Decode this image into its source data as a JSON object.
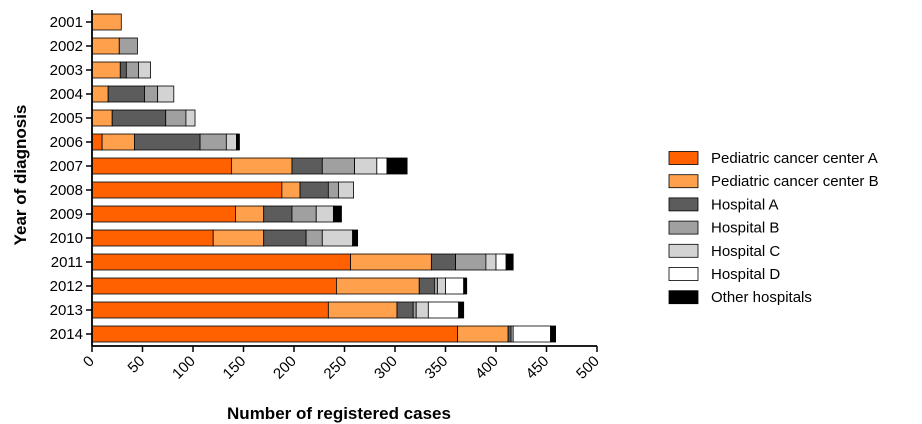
{
  "chart_data": {
    "type": "bar",
    "orientation": "horizontal",
    "stacked": true,
    "xlabel": "Number of registered cases",
    "ylabel": "Year of diagnosis",
    "xlim": [
      0,
      500
    ],
    "xticks": [
      "0",
      "50",
      "100",
      "150",
      "200",
      "250",
      "300",
      "350",
      "400",
      "450",
      "500"
    ],
    "grid": false,
    "legend_position": "right",
    "categories": [
      "2001",
      "2002",
      "2003",
      "2004",
      "2005",
      "2006",
      "2007",
      "2008",
      "2009",
      "2010",
      "2011",
      "2012",
      "2013",
      "2014"
    ],
    "series": [
      {
        "name": "Pediatric cancer center A",
        "color": "#FF6100",
        "values": [
          0,
          0,
          0,
          0,
          0,
          10,
          138,
          188,
          142,
          120,
          256,
          242,
          234,
          362
        ]
      },
      {
        "name": "Pediatric cancer center B",
        "color": "#FFA04D",
        "values": [
          29,
          27,
          28,
          16,
          20,
          32,
          60,
          18,
          28,
          50,
          80,
          82,
          68,
          50
        ]
      },
      {
        "name": "Hospital A",
        "color": "#5C5C5C",
        "values": [
          0,
          0,
          6,
          36,
          53,
          65,
          30,
          28,
          28,
          42,
          24,
          15,
          16,
          3
        ]
      },
      {
        "name": "Hospital B",
        "color": "#A0A0A0",
        "values": [
          0,
          18,
          12,
          13,
          20,
          26,
          32,
          10,
          24,
          16,
          30,
          3,
          3,
          0
        ]
      },
      {
        "name": "Hospital C",
        "color": "#D3D3D3",
        "values": [
          0,
          0,
          12,
          16,
          9,
          10,
          22,
          15,
          17,
          30,
          10,
          8,
          12,
          2
        ]
      },
      {
        "name": "Hospital D",
        "color": "#FFFFFF",
        "values": [
          0,
          0,
          0,
          0,
          0,
          0,
          10,
          0,
          0,
          0,
          10,
          18,
          30,
          37
        ]
      },
      {
        "name": "Other hospitals",
        "color": "#000000",
        "values": [
          0,
          0,
          0,
          0,
          0,
          3,
          20,
          0,
          8,
          5,
          7,
          3,
          5,
          5
        ]
      }
    ]
  }
}
